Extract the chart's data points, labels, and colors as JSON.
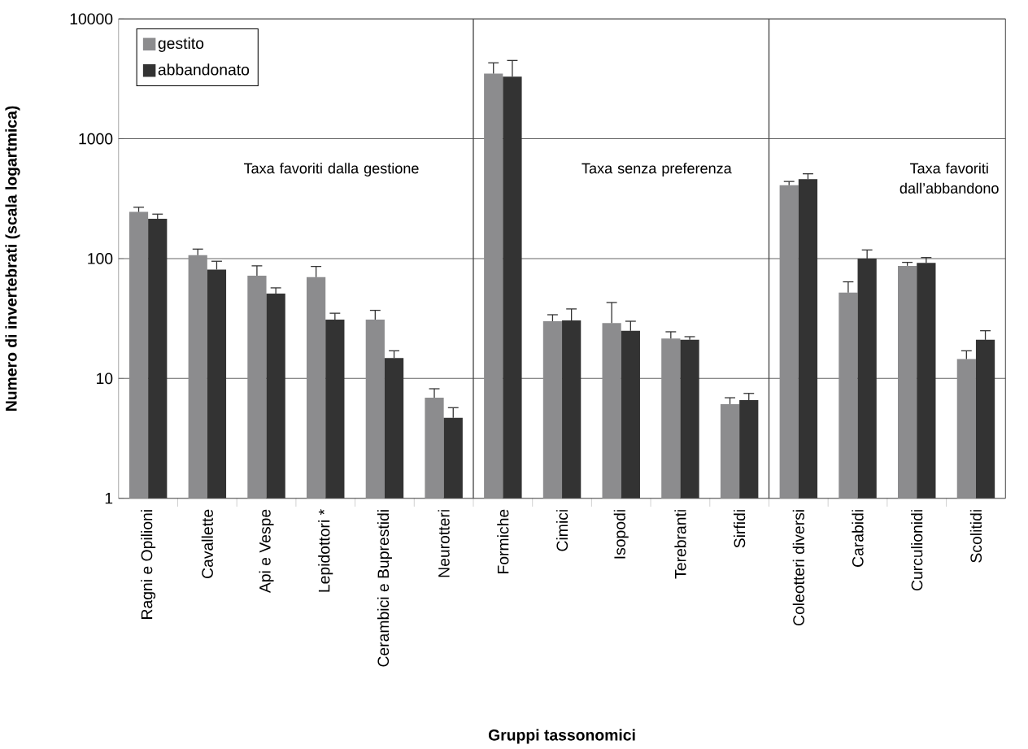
{
  "chart_data": {
    "type": "bar",
    "xlabel": "Gruppi tassonomici",
    "ylabel": "Numero di invertebrati (scala logartmica)",
    "categories": [
      "Ragni e Opilioni",
      "Cavallette",
      "Api e Vespe",
      "Lepidottori *",
      "Cerambici e Buprestidi",
      "Neurotteri",
      "Formiche",
      "Cimici",
      "Isopodi",
      "Terebranti",
      "Sirfidi",
      "Coleotteri diversi",
      "Carabidi",
      "Curculionidi",
      "Scolitidi"
    ],
    "series": [
      {
        "name": "gestito",
        "color": "#8c8c8e",
        "values": [
          245,
          107,
          72,
          70,
          31,
          6.9,
          3500,
          30,
          29,
          21.5,
          6.1,
          410,
          52,
          87,
          14.5
        ],
        "errors": [
          [
            245,
            268
          ],
          [
            107,
            120
          ],
          [
            72,
            87
          ],
          [
            70,
            86
          ],
          [
            31,
            37
          ],
          [
            6.9,
            8.2
          ],
          [
            3500,
            4300
          ],
          [
            30,
            34
          ],
          [
            29,
            43
          ],
          [
            21.5,
            24.5
          ],
          [
            6.1,
            6.9
          ],
          [
            410,
            440
          ],
          [
            52,
            64
          ],
          [
            87,
            93
          ],
          [
            14.5,
            17
          ]
        ]
      },
      {
        "name": "abbandonato",
        "color": "#333333",
        "values": [
          215,
          81,
          51,
          31,
          14.8,
          4.7,
          3300,
          30.5,
          25,
          21,
          6.6,
          460,
          100,
          92,
          21
        ],
        "errors": [
          [
            215,
            235
          ],
          [
            81,
            95
          ],
          [
            51,
            57
          ],
          [
            31,
            35
          ],
          [
            14.8,
            17
          ],
          [
            4.7,
            5.7
          ],
          [
            3300,
            4500
          ],
          [
            30.5,
            38
          ],
          [
            25,
            30
          ],
          [
            21,
            22.3
          ],
          [
            6.6,
            7.5
          ],
          [
            460,
            510
          ],
          [
            100,
            118
          ],
          [
            92,
            102
          ],
          [
            21,
            25
          ]
        ]
      }
    ],
    "log": "y",
    "ylim": [
      1,
      10000
    ],
    "yticks": [
      1,
      10,
      100,
      1000,
      10000
    ],
    "grid": "y",
    "legend": "top left",
    "annotations": [
      "Taxa favoriti dalla gestione",
      "Taxa senza preferenza",
      "Taxa favoriti dall’abbandono"
    ]
  }
}
